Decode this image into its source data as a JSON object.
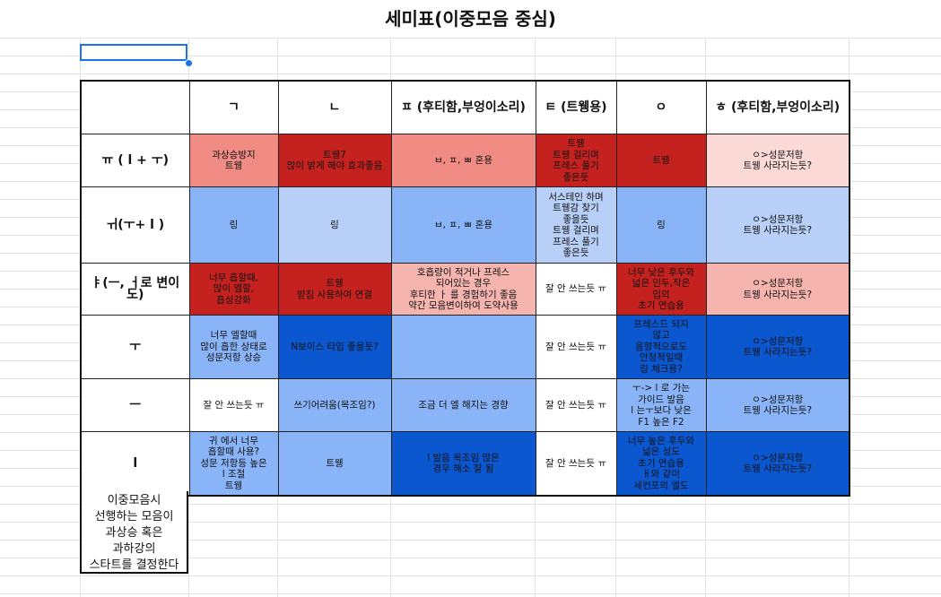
{
  "title": "세미표(이중모음 중심)",
  "columns": [
    "",
    "ㄱ",
    "ㄴ",
    "ㅍ (후티함,부엉이소리)",
    "ㅌ (트웽용)",
    "ㅇ",
    "ㅎ (후티함,부엉이소리)"
  ],
  "rows": [
    {
      "label": "ㅠ ( l + ㅜ)",
      "cells": [
        {
          "text": "과상승방지\n트웽",
          "color": "#f08c84"
        },
        {
          "text": "트웽7\n많이 밝게 해야 효과좋음",
          "color": "#c5221f"
        },
        {
          "text": "ㅂ, ㅍ, ㅃ 혼용",
          "color": "#f08c84"
        },
        {
          "text": "트웽\n트웽 걸리며\n프레스 풀기\n좋은듯",
          "color": "#c5221f"
        },
        {
          "text": "트웽",
          "color": "#c5221f"
        },
        {
          "text": "ㅇ>성문저항\n트웽 사라지는듯?",
          "color": "#fbd9d6"
        }
      ]
    },
    {
      "label": "ㅟ(ㅜ+ l )",
      "cells": [
        {
          "text": "링",
          "color": "#8ab4f8"
        },
        {
          "text": "링",
          "color": "#b8cff8"
        },
        {
          "text": "ㅂ, ㅍ, ㅃ 혼용",
          "color": "#8ab4f8"
        },
        {
          "text": "서스테인 하며\n트웽감 찾기\n좋을듯\n트웽 걸리며\n프레스 풀기\n좋은듯",
          "color": "#b8cff8"
        },
        {
          "text": "링",
          "color": "#8ab4f8"
        },
        {
          "text": "ㅇ>성문저항\n트웽 사라지는듯?",
          "color": "#b8cff8"
        }
      ]
    },
    {
      "label": "ㅑ(ㅡ, ㅓ로 변이도)",
      "cells": [
        {
          "text": "너무 흡할때,\n많이 엘할,\n흡성강화",
          "color": "#c5221f"
        },
        {
          "text": "트웽\n받침 사용하여 연결",
          "color": "#c5221f"
        },
        {
          "text": "호흡량이 적거나 프레스\n되어있는 경우\n후티한 ㅏ 를 경험하기 좋음\n약간 모음변이하여 도약사용",
          "color": "#f5b4ae"
        },
        {
          "text": "잘 안 쓰는듯 ㅠ",
          "color": "#ffffff"
        },
        {
          "text": "너무 낮은 후두와\n넓은 인두,작은\n입의\n초기 연습용",
          "color": "#c5221f"
        },
        {
          "text": "ㅇ>성문저항\n트웽 사라지는듯?",
          "color": "#f5b4ae"
        }
      ]
    },
    {
      "label": "ㅜ",
      "cells": [
        {
          "text": "너무 엘할때\n많이 흡한 상태로\n성문저항 상승",
          "color": "#8ab4f8"
        },
        {
          "text": "N보이스 타입 좋을듯?",
          "color": "#0b57d0"
        },
        {
          "text": "",
          "color": "#8ab4f8"
        },
        {
          "text": "잘 안 쓰는듯 ㅠ",
          "color": "#ffffff"
        },
        {
          "text": "프레스드 되지\n않고\n음향적으로도\n안정적일때\n링 체크용?",
          "color": "#0b57d0"
        },
        {
          "text": "ㅇ>성문저항\n트웽 사라지는듯?",
          "color": "#0b57d0"
        }
      ]
    },
    {
      "label": "ㅡ",
      "cells": [
        {
          "text": "잘 안 쓰는듯 ㅠ",
          "color": "#ffffff"
        },
        {
          "text": "쓰기어려움(목조임?)",
          "color": "#8ab4f8"
        },
        {
          "text": "조금 더 엘 해지는 경향",
          "color": "#8ab4f8"
        },
        {
          "text": "잘 안 쓰는듯 ㅠ",
          "color": "#ffffff"
        },
        {
          "text": "ㅜ-> l 로 가는\n가이드 발음\nl 는ㅜ보다 낮은\nF1 높은 F2",
          "color": "#8ab4f8"
        },
        {
          "text": "ㅇ>성문저항\n트웽 사라지는듯?",
          "color": "#8ab4f8"
        }
      ]
    },
    {
      "label": "l",
      "cells": [
        {
          "text": "귀 에서 너무\n흡할때 사용?\n성문 저항등 높은\nl  조절\n트웽",
          "color": "#8ab4f8"
        },
        {
          "text": "트웽",
          "color": "#8ab4f8"
        },
        {
          "text": "l  발음 목조임 많은\n경우 해소 잘 됨",
          "color": "#0b57d0"
        },
        {
          "text": "잘 안 쓰는듯 ㅠ",
          "color": "#ffffff"
        },
        {
          "text": "너무 높은 후두와\n넓은 성도\n초기 연습용\nㅐ와 같이\n세컨포의 엘도",
          "color": "#0b57d0"
        },
        {
          "text": "ㅇ>성문저항\n트웽 사라지는듯?",
          "color": "#0b57d0"
        }
      ]
    }
  ],
  "note": "이중모음시\n선행하는 모음이\n과상승 혹은\n과하강의\n스타트를 결정한다"
}
